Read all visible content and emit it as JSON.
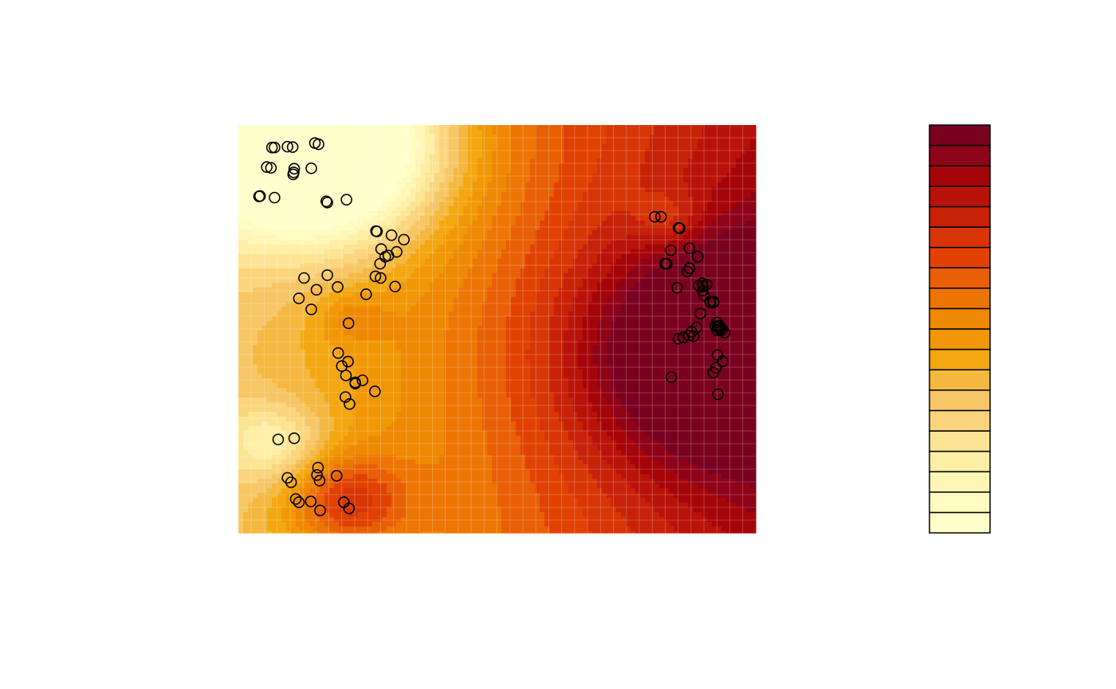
{
  "chart_data": {
    "type": "contour",
    "title": "",
    "xlabel": "",
    "ylabel": "",
    "grid": true,
    "legend": "right",
    "xlim": [
      0,
      1
    ],
    "ylim": [
      0,
      1
    ],
    "levels": 21,
    "palette": [
      "#FFFFCC",
      "#FFFBC1",
      "#FFF6B6",
      "#FFEEA5",
      "#FDE494",
      "#FAD57E",
      "#F7C666",
      "#F4B841",
      "#F3A711",
      "#F19705",
      "#EF8803",
      "#EC7504",
      "#E85F05",
      "#E14202",
      "#D73506",
      "#C72208",
      "#B91208",
      "#A50509",
      "#8F0318",
      "#7A0020"
    ],
    "field_peaks": [
      {
        "x": 0.155,
        "y": 0.95,
        "amplitude": -0.85,
        "spread": 0.16
      },
      {
        "x": 0.07,
        "y": 0.22,
        "amplitude": -0.22,
        "spread": 0.07
      },
      {
        "x": 0.21,
        "y": 0.08,
        "amplitude": 0.28,
        "spread": 0.08
      },
      {
        "x": 0.93,
        "y": 0.44,
        "amplitude": 0.45,
        "spread": 0.2
      },
      {
        "x": 0.83,
        "y": 0.77,
        "amplitude": -0.12,
        "spread": 0.05
      },
      {
        "x": 0.22,
        "y": 0.53,
        "amplitude": 0.1,
        "spread": 0.05
      }
    ],
    "field_base": 0.34,
    "field_slope_x": 0.5,
    "points": [
      [
        0.065,
        0.945
      ],
      [
        0.07,
        0.945
      ],
      [
        0.095,
        0.947
      ],
      [
        0.105,
        0.946
      ],
      [
        0.148,
        0.956
      ],
      [
        0.155,
        0.953
      ],
      [
        0.055,
        0.897
      ],
      [
        0.063,
        0.895
      ],
      [
        0.108,
        0.893
      ],
      [
        0.107,
        0.884
      ],
      [
        0.106,
        0.879
      ],
      [
        0.141,
        0.894
      ],
      [
        0.04,
        0.825
      ],
      [
        0.042,
        0.826
      ],
      [
        0.07,
        0.822
      ],
      [
        0.17,
        0.813
      ],
      [
        0.172,
        0.81
      ],
      [
        0.209,
        0.817
      ],
      [
        0.266,
        0.74
      ],
      [
        0.268,
        0.739
      ],
      [
        0.296,
        0.73
      ],
      [
        0.32,
        0.719
      ],
      [
        0.276,
        0.696
      ],
      [
        0.306,
        0.689
      ],
      [
        0.284,
        0.677
      ],
      [
        0.29,
        0.68
      ],
      [
        0.274,
        0.66
      ],
      [
        0.265,
        0.629
      ],
      [
        0.275,
        0.625
      ],
      [
        0.303,
        0.604
      ],
      [
        0.127,
        0.625
      ],
      [
        0.172,
        0.632
      ],
      [
        0.192,
        0.603
      ],
      [
        0.151,
        0.596
      ],
      [
        0.117,
        0.575
      ],
      [
        0.141,
        0.548
      ],
      [
        0.247,
        0.585
      ],
      [
        0.213,
        0.514
      ],
      [
        0.193,
        0.441
      ],
      [
        0.212,
        0.42
      ],
      [
        0.2,
        0.409
      ],
      [
        0.208,
        0.386
      ],
      [
        0.226,
        0.369
      ],
      [
        0.226,
        0.366
      ],
      [
        0.24,
        0.374
      ],
      [
        0.264,
        0.347
      ],
      [
        0.207,
        0.333
      ],
      [
        0.215,
        0.316
      ],
      [
        0.077,
        0.229
      ],
      [
        0.108,
        0.232
      ],
      [
        0.154,
        0.16
      ],
      [
        0.152,
        0.142
      ],
      [
        0.095,
        0.135
      ],
      [
        0.102,
        0.124
      ],
      [
        0.157,
        0.128
      ],
      [
        0.19,
        0.14
      ],
      [
        0.111,
        0.083
      ],
      [
        0.117,
        0.075
      ],
      [
        0.14,
        0.077
      ],
      [
        0.204,
        0.075
      ],
      [
        0.214,
        0.06
      ],
      [
        0.158,
        0.055
      ],
      [
        0.805,
        0.775
      ],
      [
        0.817,
        0.775
      ],
      [
        0.851,
        0.748
      ],
      [
        0.853,
        0.747
      ],
      [
        0.872,
        0.698
      ],
      [
        0.888,
        0.677
      ],
      [
        0.836,
        0.693
      ],
      [
        0.828,
        0.66
      ],
      [
        0.825,
        0.66
      ],
      [
        0.872,
        0.649
      ],
      [
        0.868,
        0.641
      ],
      [
        0.848,
        0.601
      ],
      [
        0.897,
        0.612
      ],
      [
        0.905,
        0.609
      ],
      [
        0.898,
        0.604
      ],
      [
        0.89,
        0.606
      ],
      [
        0.897,
        0.594
      ],
      [
        0.9,
        0.582
      ],
      [
        0.918,
        0.566
      ],
      [
        0.913,
        0.565
      ],
      [
        0.918,
        0.565
      ],
      [
        0.919,
        0.567
      ],
      [
        0.912,
        0.567
      ],
      [
        0.893,
        0.538
      ],
      [
        0.922,
        0.507
      ],
      [
        0.93,
        0.508
      ],
      [
        0.926,
        0.506
      ],
      [
        0.935,
        0.5
      ],
      [
        0.933,
        0.497
      ],
      [
        0.925,
        0.497
      ],
      [
        0.93,
        0.506
      ],
      [
        0.94,
        0.491
      ],
      [
        0.93,
        0.5
      ],
      [
        0.925,
        0.516
      ],
      [
        0.886,
        0.504
      ],
      [
        0.876,
        0.493
      ],
      [
        0.88,
        0.482
      ],
      [
        0.871,
        0.484
      ],
      [
        0.851,
        0.476
      ],
      [
        0.86,
        0.479
      ],
      [
        0.926,
        0.436
      ],
      [
        0.936,
        0.42
      ],
      [
        0.923,
        0.405
      ],
      [
        0.918,
        0.393
      ],
      [
        0.837,
        0.382
      ],
      [
        0.927,
        0.34
      ]
    ]
  }
}
